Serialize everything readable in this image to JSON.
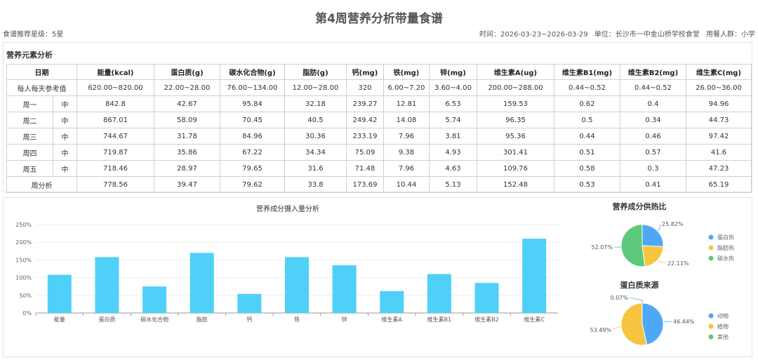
{
  "header": {
    "title": "第4周营养分析带量食谱",
    "rating": "食谱推荐星级：5星",
    "time": "时间：2026-03-23~2026-03-29",
    "unit": "单位：长沙市一中金山桥学校食堂",
    "people": "用餐人群：小学"
  },
  "table_title": "营养元素分析",
  "table": {
    "headers": [
      "日期",
      "能量(kcal)",
      "蛋白质(g)",
      "碳水化合物(g)",
      "脂肪(g)",
      "钙(mg)",
      "铁(mg)",
      "锌(mg)",
      "维生素A(ug)",
      "维生素B1(mg)",
      "维生素B2(mg)",
      "维生素C(mg)"
    ],
    "reference": {
      "label": "每人每天参考值",
      "values": [
        "620.00~820.00",
        "22.00~28.00",
        "76.00~134.00",
        "12.00~28.00",
        "320",
        "6.00~7.20",
        "3.60~4.00",
        "200.00~288.00",
        "0.44~0.52",
        "0.44~0.52",
        "26.00~36.00"
      ]
    },
    "rows": [
      {
        "day": "周一",
        "meal": "中",
        "values": [
          "842.8",
          "42.67",
          "95.84",
          "32.18",
          "239.27",
          "12.81",
          "6.53",
          "159.53",
          "0.62",
          "0.4",
          "94.96"
        ]
      },
      {
        "day": "周二",
        "meal": "中",
        "values": [
          "867.01",
          "58.09",
          "70.45",
          "40.5",
          "249.42",
          "14.08",
          "5.74",
          "96.35",
          "0.5",
          "0.34",
          "44.73"
        ]
      },
      {
        "day": "周三",
        "meal": "中",
        "values": [
          "744.67",
          "31.78",
          "84.96",
          "30.36",
          "233.19",
          "7.96",
          "3.81",
          "95.36",
          "0.44",
          "0.46",
          "97.42"
        ]
      },
      {
        "day": "周四",
        "meal": "中",
        "values": [
          "719.87",
          "35.86",
          "67.22",
          "34.34",
          "75.09",
          "9.38",
          "4.93",
          "301.41",
          "0.51",
          "0.57",
          "41.6"
        ]
      },
      {
        "day": "周五",
        "meal": "中",
        "values": [
          "718.46",
          "28.97",
          "79.65",
          "31.6",
          "71.48",
          "7.96",
          "4.63",
          "109.76",
          "0.58",
          "0.3",
          "47.23"
        ]
      }
    ],
    "summary": {
      "label": "周分析",
      "values": [
        "778.56",
        "39.47",
        "79.62",
        "33.8",
        "173.69",
        "10.44",
        "5.13",
        "152.48",
        "0.53",
        "0.41",
        "65.19"
      ]
    }
  },
  "chart_data": [
    {
      "type": "bar",
      "title": "营养成分摄入量分析",
      "categories": [
        "能量",
        "蛋白质",
        "碳水化合物",
        "脂肪",
        "钙",
        "铁",
        "锌",
        "维生素A",
        "维生素B1",
        "维生素B2",
        "维生素C"
      ],
      "values": [
        108,
        158,
        75,
        170,
        54,
        158,
        135,
        62,
        110,
        85,
        210
      ],
      "y_ticks": [
        "0%",
        "50%",
        "100%",
        "150%",
        "200%",
        "250%"
      ],
      "ylim": [
        0,
        250
      ],
      "color": "#4fd0f8"
    },
    {
      "type": "pie",
      "title": "营养成分供热比",
      "labels": [
        "蛋白热",
        "脂肪热",
        "碳水热"
      ],
      "values": [
        25.82,
        22.11,
        52.07
      ],
      "value_labels": [
        "25.82%",
        "22.11%",
        "52.07%"
      ],
      "colors": [
        "#4ea8f7",
        "#f6c540",
        "#5cc97a"
      ]
    },
    {
      "type": "pie",
      "title": "蛋白质来源",
      "labels": [
        "动物",
        "植物",
        "其他"
      ],
      "values": [
        46.44,
        53.49,
        0.07
      ],
      "value_labels": [
        "46.44%",
        "53.49%",
        "0.07%"
      ],
      "colors": [
        "#4ea8f7",
        "#f6c540",
        "#5cc97a"
      ]
    }
  ]
}
